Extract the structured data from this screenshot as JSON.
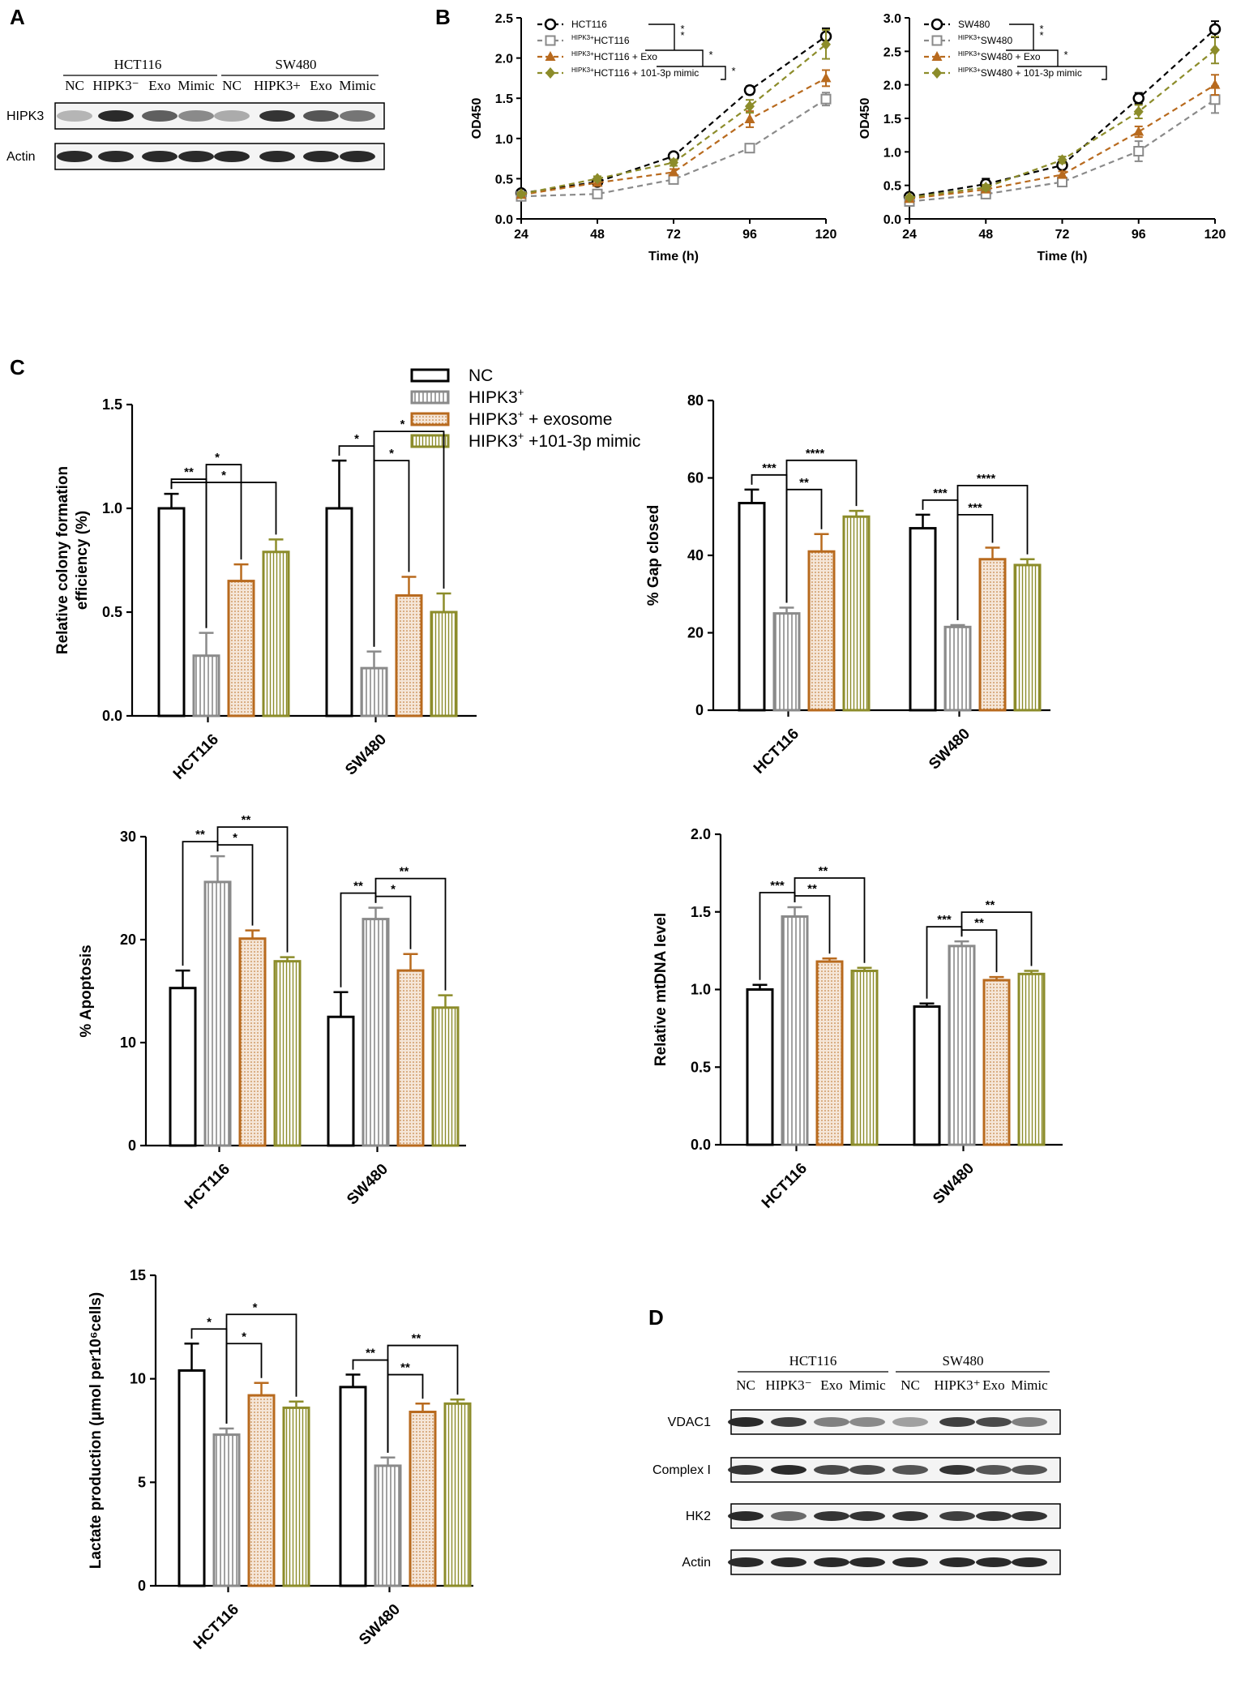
{
  "panel_labels": {
    "a": "A",
    "b": "B",
    "c": "C",
    "d": "D"
  },
  "colors": {
    "nc": "#000000",
    "hipk3": "#8a8a8a",
    "exo": "#b86a1e",
    "mimic": "#8c8c2a"
  },
  "blot_a": {
    "groups": [
      "HCT116",
      "SW480"
    ],
    "lanes": [
      "NC",
      "HIPK3⁻",
      "Exo",
      "Mimic",
      "NC",
      "HIPK3+",
      "Exo",
      "Mimic"
    ],
    "rows": [
      "HIPK3",
      "Actin"
    ],
    "row_intensity": [
      [
        0.25,
        0.9,
        0.65,
        0.45,
        0.3,
        0.85,
        0.7,
        0.55
      ],
      [
        0.9,
        0.9,
        0.9,
        0.9,
        0.9,
        0.9,
        0.9,
        0.9
      ]
    ]
  },
  "blot_d": {
    "groups": [
      "HCT116",
      "SW480"
    ],
    "lanes": [
      "NC",
      "HIPK3⁻",
      "Exo",
      "Mimic",
      "NC",
      "HIPK3⁺",
      "Exo",
      "Mimic"
    ],
    "rows": [
      "VDAC1",
      "Complex I",
      "HK2",
      "Actin"
    ],
    "row_intensity": [
      [
        0.9,
        0.8,
        0.5,
        0.45,
        0.35,
        0.8,
        0.75,
        0.5
      ],
      [
        0.85,
        0.9,
        0.75,
        0.75,
        0.7,
        0.85,
        0.7,
        0.7
      ],
      [
        0.9,
        0.6,
        0.85,
        0.85,
        0.85,
        0.8,
        0.85,
        0.85
      ],
      [
        0.9,
        0.9,
        0.9,
        0.9,
        0.9,
        0.9,
        0.9,
        0.9
      ]
    ]
  },
  "legend_c": [
    {
      "text": "NC",
      "sup": "",
      "rest": ""
    },
    {
      "text": "HIPK3",
      "sup": "+",
      "rest": ""
    },
    {
      "text": "HIPK3",
      "sup": "+",
      "rest": " + exosome"
    },
    {
      "text": "HIPK3",
      "sup": "+",
      "rest": " +101-3p mimic"
    }
  ],
  "chart_data": [
    {
      "id": "b1",
      "type": "line",
      "xlabel": "Time (h)",
      "ylabel": "OD450",
      "x": [
        24,
        48,
        72,
        96,
        120
      ],
      "xlim": [
        24,
        120
      ],
      "ylim": [
        0,
        2.5
      ],
      "yticks": [
        "0.0",
        "0.5",
        "1.0",
        "1.5",
        "2.0",
        "2.5"
      ],
      "ytick_values": [
        0,
        0.5,
        1,
        1.5,
        2,
        2.5
      ],
      "series": [
        {
          "pre": "",
          "name": "HCT116",
          "marker": "circle",
          "values": [
            0.32,
            0.46,
            0.78,
            1.6,
            2.27
          ],
          "err": [
            0.02,
            0.02,
            0.03,
            0.05,
            0.1
          ]
        },
        {
          "pre": "HIPK3+",
          "name": "HCT116",
          "marker": "square",
          "values": [
            0.28,
            0.31,
            0.49,
            0.88,
            1.49
          ],
          "err": [
            0.02,
            0.02,
            0.03,
            0.04,
            0.08
          ]
        },
        {
          "pre": "HIPK3+",
          "name": "HCT116 + Exo",
          "marker": "triangle",
          "values": [
            0.3,
            0.45,
            0.58,
            1.24,
            1.75
          ],
          "err": [
            0.02,
            0.02,
            0.04,
            0.1,
            0.1
          ]
        },
        {
          "pre": "HIPK3+",
          "name": "HCT116 + 101-3p mimic",
          "marker": "diamond",
          "values": [
            0.31,
            0.5,
            0.7,
            1.4,
            2.17
          ],
          "err": [
            0.02,
            0.03,
            0.04,
            0.08,
            0.18
          ]
        }
      ],
      "brackets": [
        "*",
        "*",
        "*",
        "*"
      ]
    },
    {
      "id": "b2",
      "type": "line",
      "xlabel": "Time (h)",
      "ylabel": "OD450",
      "x": [
        24,
        48,
        72,
        96,
        120
      ],
      "xlim": [
        24,
        120
      ],
      "ylim": [
        0,
        3.0
      ],
      "yticks": [
        "0.0",
        "0.5",
        "1.0",
        "1.5",
        "2.0",
        "2.5",
        "3.0"
      ],
      "ytick_values": [
        0,
        0.5,
        1,
        1.5,
        2,
        2.5,
        3
      ],
      "series": [
        {
          "pre": "",
          "name": "SW480",
          "marker": "circle",
          "values": [
            0.33,
            0.52,
            0.8,
            1.8,
            2.83
          ],
          "err": [
            0.02,
            0.08,
            0.05,
            0.08,
            0.12
          ]
        },
        {
          "pre": "HIPK3+",
          "name": "SW480",
          "marker": "square",
          "values": [
            0.26,
            0.37,
            0.55,
            1.01,
            1.78
          ],
          "err": [
            0.02,
            0.04,
            0.05,
            0.15,
            0.2
          ]
        },
        {
          "pre": "HIPK3+",
          "name": "SW480 + Exo",
          "marker": "triangle",
          "values": [
            0.3,
            0.44,
            0.66,
            1.3,
            2.0
          ],
          "err": [
            0.02,
            0.04,
            0.05,
            0.08,
            0.15
          ]
        },
        {
          "pre": "HIPK3+",
          "name": "SW480 + 101-3p mimic",
          "marker": "diamond",
          "values": [
            0.32,
            0.47,
            0.88,
            1.6,
            2.52
          ],
          "err": [
            0.02,
            0.04,
            0.05,
            0.1,
            0.2
          ]
        }
      ],
      "brackets": [
        "*",
        "*",
        "*"
      ]
    },
    {
      "id": "c1",
      "type": "bar",
      "ylabel": [
        "Relative colony formation",
        "efficiency (%)"
      ],
      "categories": [
        "HCT116",
        "SW480"
      ],
      "ylim": [
        0,
        1.5
      ],
      "yticks": [
        "0.0",
        "0.5",
        "1.0",
        "1.5"
      ],
      "ytick_values": [
        0,
        0.5,
        1,
        1.5
      ],
      "values": [
        [
          1.0,
          0.29,
          0.65,
          0.79
        ],
        [
          1.0,
          0.23,
          0.58,
          0.5
        ]
      ],
      "err": [
        [
          0.07,
          0.11,
          0.08,
          0.06
        ],
        [
          0.23,
          0.08,
          0.09,
          0.09
        ]
      ],
      "sig": [
        [
          {
            "a": 0,
            "b": 1,
            "t": "**"
          },
          {
            "a": 0,
            "b": 3,
            "t": "*"
          },
          {
            "a": 1,
            "b": 2,
            "t": "*"
          }
        ],
        [
          {
            "a": 0,
            "b": 1,
            "t": "*"
          },
          {
            "a": 1,
            "b": 2,
            "t": "*"
          },
          {
            "a": 1,
            "b": 3,
            "t": "*"
          }
        ]
      ]
    },
    {
      "id": "c2",
      "type": "bar",
      "ylabel": [
        "% Gap closed"
      ],
      "categories": [
        "HCT116",
        "SW480"
      ],
      "ylim": [
        0,
        80
      ],
      "yticks": [
        "0",
        "20",
        "40",
        "60",
        "80"
      ],
      "ytick_values": [
        0,
        20,
        40,
        60,
        80
      ],
      "values": [
        [
          53.5,
          25,
          41,
          50
        ],
        [
          47,
          21.5,
          39,
          37.5
        ]
      ],
      "err": [
        [
          3.5,
          1.5,
          4.5,
          1.5
        ],
        [
          3.5,
          0.5,
          3,
          1.5
        ]
      ],
      "sig": [
        [
          {
            "a": 0,
            "b": 1,
            "t": "***"
          },
          {
            "a": 1,
            "b": 2,
            "t": "**"
          },
          {
            "a": 1,
            "b": 3,
            "t": "****"
          }
        ],
        [
          {
            "a": 0,
            "b": 1,
            "t": "***"
          },
          {
            "a": 1,
            "b": 2,
            "t": "***"
          },
          {
            "a": 1,
            "b": 3,
            "t": "****"
          }
        ]
      ]
    },
    {
      "id": "c3",
      "type": "bar",
      "ylabel": [
        "% Apoptosis"
      ],
      "categories": [
        "HCT116",
        "SW480"
      ],
      "ylim": [
        0,
        30
      ],
      "yticks": [
        "0",
        "10",
        "20",
        "30"
      ],
      "ytick_values": [
        0,
        10,
        20,
        30
      ],
      "values": [
        [
          15.3,
          25.6,
          20.1,
          17.9
        ],
        [
          12.5,
          22,
          17,
          13.4
        ]
      ],
      "err": [
        [
          1.7,
          2.5,
          0.8,
          0.4
        ],
        [
          2.4,
          1.1,
          1.6,
          1.2
        ]
      ],
      "sig": [
        [
          {
            "a": 0,
            "b": 1,
            "t": "**"
          },
          {
            "a": 1,
            "b": 2,
            "t": "*"
          },
          {
            "a": 1,
            "b": 3,
            "t": "**"
          }
        ],
        [
          {
            "a": 0,
            "b": 1,
            "t": "**"
          },
          {
            "a": 1,
            "b": 2,
            "t": "*"
          },
          {
            "a": 1,
            "b": 3,
            "t": "**"
          }
        ]
      ]
    },
    {
      "id": "c4",
      "type": "bar",
      "ylabel": [
        "Relative mtDNA level"
      ],
      "categories": [
        "HCT116",
        "SW480"
      ],
      "ylim": [
        0,
        2.0
      ],
      "yticks": [
        "0.0",
        "0.5",
        "1.0",
        "1.5",
        "2.0"
      ],
      "ytick_values": [
        0,
        0.5,
        1,
        1.5,
        2
      ],
      "values": [
        [
          1.0,
          1.47,
          1.18,
          1.12
        ],
        [
          0.89,
          1.28,
          1.06,
          1.1
        ]
      ],
      "err": [
        [
          0.03,
          0.06,
          0.02,
          0.02
        ],
        [
          0.02,
          0.03,
          0.02,
          0.02
        ]
      ],
      "sig": [
        [
          {
            "a": 0,
            "b": 1,
            "t": "***"
          },
          {
            "a": 1,
            "b": 2,
            "t": "**"
          },
          {
            "a": 1,
            "b": 3,
            "t": "**"
          }
        ],
        [
          {
            "a": 0,
            "b": 1,
            "t": "***"
          },
          {
            "a": 1,
            "b": 2,
            "t": "**"
          },
          {
            "a": 1,
            "b": 3,
            "t": "**"
          }
        ]
      ]
    },
    {
      "id": "c5",
      "type": "bar",
      "ylabel": [
        "Lactate production  (μmol per10⁶cells)"
      ],
      "categories": [
        "HCT116",
        "SW480"
      ],
      "ylim": [
        0,
        15
      ],
      "yticks": [
        "0",
        "5",
        "10",
        "15"
      ],
      "ytick_values": [
        0,
        5,
        10,
        15
      ],
      "values": [
        [
          10.4,
          7.3,
          9.2,
          8.6
        ],
        [
          9.6,
          5.8,
          8.4,
          8.8
        ]
      ],
      "err": [
        [
          1.3,
          0.3,
          0.6,
          0.3
        ],
        [
          0.6,
          0.4,
          0.4,
          0.2
        ]
      ],
      "sig": [
        [
          {
            "a": 0,
            "b": 1,
            "t": "*"
          },
          {
            "a": 1,
            "b": 2,
            "t": "*"
          },
          {
            "a": 1,
            "b": 3,
            "t": "*"
          }
        ],
        [
          {
            "a": 0,
            "b": 1,
            "t": "**"
          },
          {
            "a": 1,
            "b": 2,
            "t": "**"
          },
          {
            "a": 1,
            "b": 3,
            "t": "**"
          }
        ]
      ]
    }
  ]
}
